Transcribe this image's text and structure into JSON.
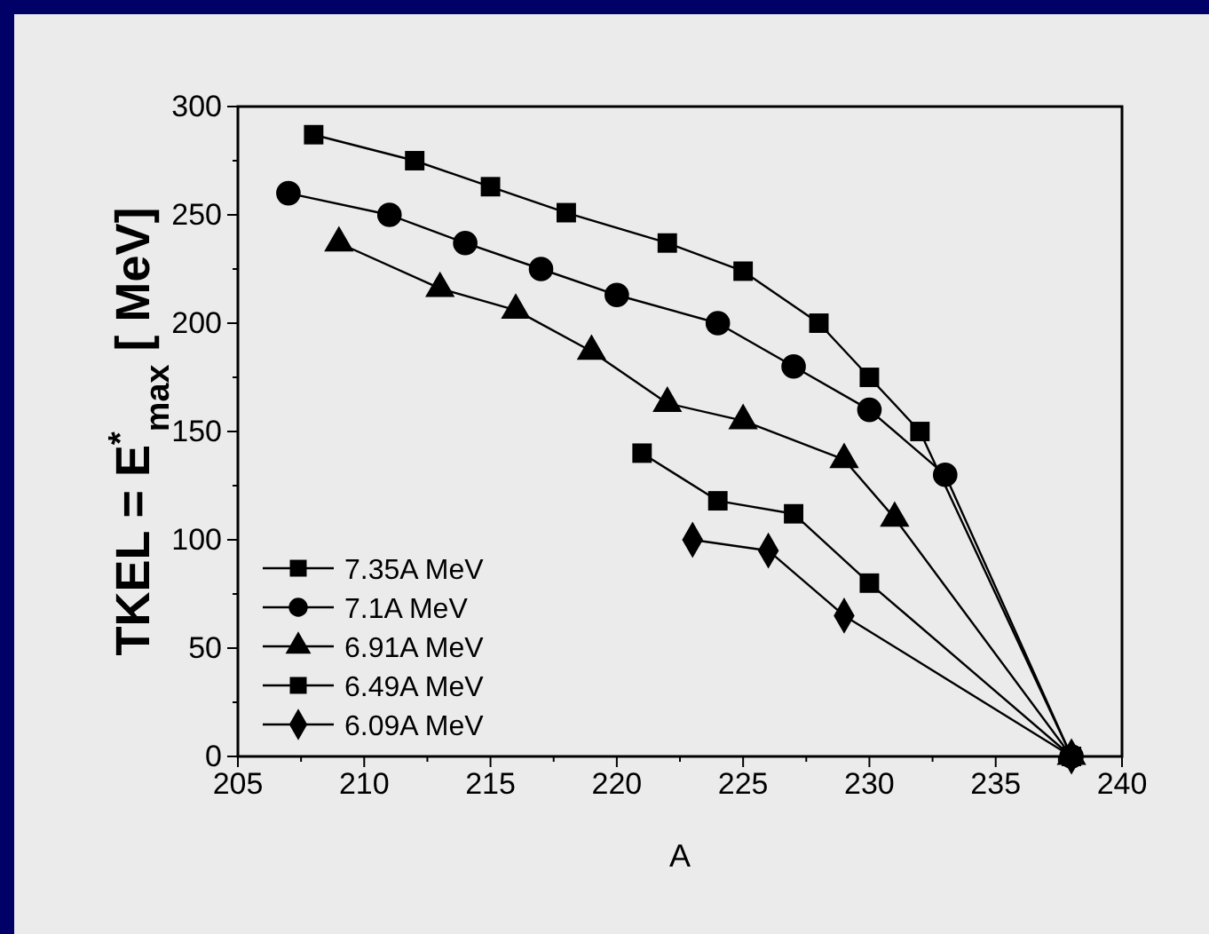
{
  "chart_data": {
    "type": "line",
    "xlabel": "A",
    "ylabel": "TKEL = E$^{*}$$_{max}$ [ MeV]",
    "xlim": [
      205,
      240
    ],
    "ylim": [
      0,
      300
    ],
    "xticks": [
      205,
      {
        "value": 207.5,
        "label": null
      },
      210,
      {
        "value": 212.5,
        "label": null
      },
      215,
      {
        "value": 217.5,
        "label": null
      },
      220,
      {
        "value": 222.5,
        "label": null
      },
      225,
      {
        "value": 227.5,
        "label": null
      },
      230,
      {
        "value": 232.5,
        "label": null
      },
      235,
      {
        "value": 237.5,
        "label": null
      },
      240
    ],
    "yticks": [
      0,
      {
        "value": 25,
        "label": null
      },
      50,
      {
        "value": 75,
        "label": null
      },
      100,
      {
        "value": 125,
        "label": null
      },
      150,
      {
        "value": 175,
        "label": null
      },
      200,
      {
        "value": 225,
        "label": null
      },
      250,
      {
        "value": 275,
        "label": null
      },
      300
    ],
    "legend": "bottom left",
    "grid": false,
    "line_style": "solid",
    "series": [
      {
        "name": "7.35A MeV",
        "color": "#000000",
        "marker": "square",
        "x": [
          208,
          212,
          215,
          218,
          222,
          225,
          228,
          230,
          232,
          238
        ],
        "values": [
          287,
          275,
          263,
          251,
          237,
          224,
          200,
          175,
          150,
          0
        ]
      },
      {
        "name": "7.1A MeV",
        "color": "#000000",
        "marker": "circle",
        "x": [
          207,
          211,
          214,
          217,
          220,
          224,
          227,
          230,
          233,
          238
        ],
        "values": [
          260,
          250,
          237,
          225,
          213,
          200,
          180,
          160,
          130,
          0
        ]
      },
      {
        "name": "6.91A MeV",
        "color": "#000000",
        "marker": "triangle",
        "x": [
          209,
          213,
          216,
          219,
          222,
          225,
          229,
          231,
          238
        ],
        "values": [
          237,
          216,
          206,
          187,
          163,
          155,
          137,
          110,
          0
        ]
      },
      {
        "name": "6.49A MeV",
        "color": "#000000",
        "marker": "square",
        "x": [
          221,
          224,
          227,
          230,
          238
        ],
        "values": [
          140,
          118,
          112,
          80,
          0
        ]
      },
      {
        "name": "6.09A MeV",
        "color": "#000000",
        "marker": "diamond",
        "x": [
          223,
          226,
          229,
          238
        ],
        "values": [
          100,
          95,
          65,
          0
        ]
      }
    ]
  }
}
